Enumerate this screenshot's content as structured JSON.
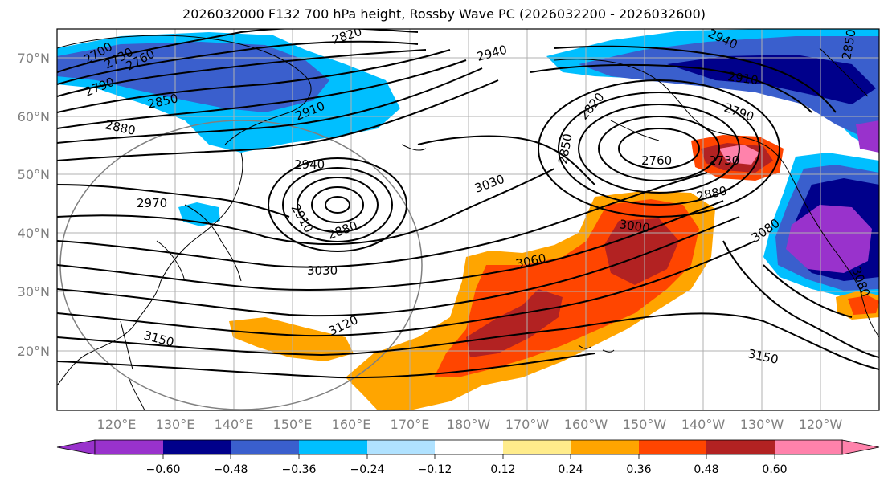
{
  "title": "2026032000 F132 700 hPa height, Rossby Wave PC (2026032200 - 2026032600)",
  "lat_ticks": [
    "70°N",
    "60°N",
    "50°N",
    "40°N",
    "30°N",
    "20°N"
  ],
  "lon_ticks": [
    "120°E",
    "130°E",
    "140°E",
    "150°E",
    "160°E",
    "170°E",
    "180°W",
    "170°W",
    "160°W",
    "150°W",
    "140°W",
    "130°W",
    "120°W"
  ],
  "contour_labels": [
    "2700",
    "2730",
    "2760",
    "2790",
    "2820",
    "2850",
    "2880",
    "2910",
    "2940",
    "2940",
    "2970",
    "2910",
    "2880",
    "3030",
    "3030",
    "3060",
    "3120",
    "3150",
    "3150",
    "2820",
    "2850",
    "2760",
    "2730",
    "2880",
    "3000",
    "3080",
    "2910",
    "2790",
    "2940",
    "2850",
    "3080"
  ],
  "colorbar": {
    "labels": [
      "−0.60",
      "−0.48",
      "−0.36",
      "−0.24",
      "−0.12",
      "0.12",
      "0.24",
      "0.36",
      "0.48",
      "0.60"
    ],
    "colors": [
      "#9932cc",
      "#00008b",
      "#3a5fcd",
      "#00bfff",
      "#b0e2ff",
      "#ffffff",
      "#ffec8b",
      "#ffa500",
      "#ff4500",
      "#b22222",
      "#ff82ab"
    ]
  },
  "colors": {
    "neg_strong": "#00008b",
    "neg_med": "#3a5fcd",
    "neg_light": "#00bfff",
    "pos_light": "#ffa500",
    "pos_med": "#ff4500",
    "pos_strong": "#b22222",
    "pos_max": "#ff82ab",
    "purple": "#9932cc"
  }
}
